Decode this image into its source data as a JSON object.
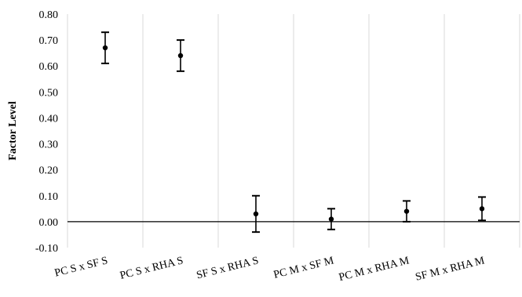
{
  "chart_data": {
    "type": "scatter",
    "title": "",
    "xlabel": "",
    "ylabel": "Factor Level",
    "ylim": [
      -0.1,
      0.8
    ],
    "yticks": [
      "-0.10",
      "0.00",
      "0.10",
      "0.20",
      "0.30",
      "0.40",
      "0.50",
      "0.60",
      "0.70",
      "0.80"
    ],
    "categories": [
      "PC S x SF S",
      "PC S x RHA S",
      "SF S x RHA S",
      "PC M x SF M",
      "PC M x RHA M",
      "SF M x RHA M"
    ],
    "values": [
      0.67,
      0.64,
      0.03,
      0.01,
      0.04,
      0.05
    ],
    "error_low": [
      0.61,
      0.58,
      -0.04,
      -0.03,
      0.0,
      0.005
    ],
    "error_high": [
      0.73,
      0.7,
      0.1,
      0.05,
      0.08,
      0.095
    ],
    "grid": "vertical",
    "legend": "none",
    "colors": {
      "marker": "#000000",
      "grid": "#d9d9d9",
      "zero_line": "#000000"
    }
  }
}
